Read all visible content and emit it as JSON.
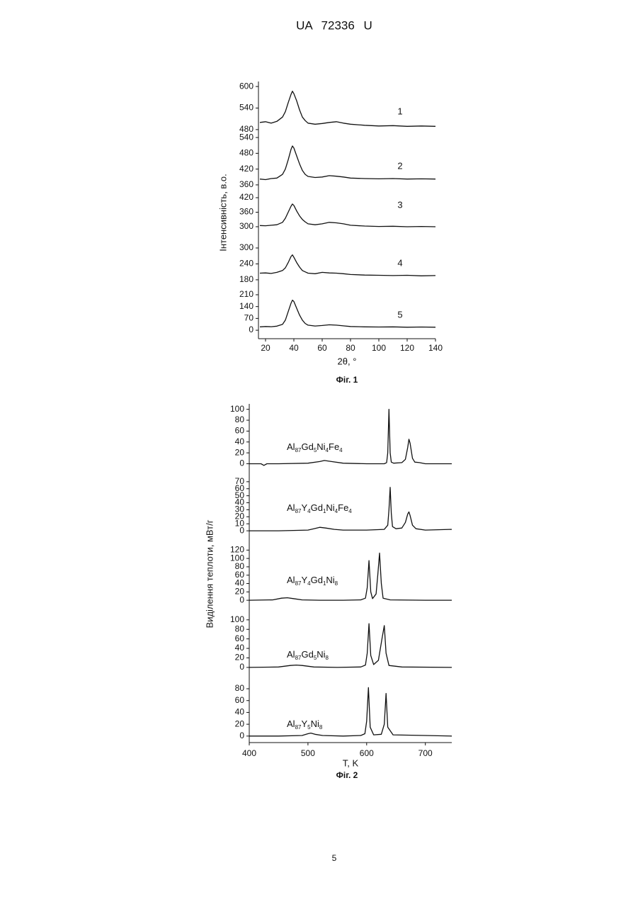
{
  "header": {
    "title": "UA 72336 U"
  },
  "chart_data": [
    {
      "type": "line",
      "caption": "Фіг. 1",
      "x_label": "2θ, °",
      "y_label": "Інтенсивність, в.о.",
      "xlim": [
        15,
        140
      ],
      "xticks": [
        20,
        40,
        60,
        80,
        100,
        120,
        140
      ],
      "x": [
        16,
        20,
        24,
        28,
        32,
        34,
        36,
        38,
        39,
        40,
        42,
        44,
        46,
        48,
        50,
        55,
        60,
        65,
        70,
        75,
        80,
        90,
        100,
        110,
        120,
        130,
        140
      ],
      "series": [
        {
          "name": "1",
          "color": "#111111",
          "ylim": [
            466,
            614
          ],
          "yticks": [
            480,
            540,
            600
          ],
          "values": [
            500,
            502,
            498,
            503,
            515,
            530,
            555,
            578,
            587,
            580,
            560,
            535,
            515,
            505,
            498,
            495,
            497,
            500,
            502,
            498,
            495,
            492,
            490,
            491,
            489,
            490,
            489
          ]
        },
        {
          "name": "2",
          "color": "#111111",
          "ylim": [
            349,
            551
          ],
          "yticks": [
            360,
            420,
            480,
            540
          ],
          "values": [
            382,
            380,
            384,
            386,
            400,
            420,
            455,
            495,
            508,
            500,
            470,
            440,
            415,
            400,
            392,
            388,
            390,
            395,
            393,
            390,
            386,
            384,
            383,
            384,
            382,
            383,
            382
          ]
        },
        {
          "name": "3",
          "color": "#111111",
          "ylim": [
            256,
            461
          ],
          "yticks": [
            300,
            360,
            420
          ],
          "values": [
            305,
            304,
            306,
            308,
            318,
            335,
            360,
            385,
            394,
            388,
            365,
            345,
            330,
            320,
            312,
            308,
            312,
            318,
            316,
            312,
            306,
            303,
            301,
            302,
            300,
            301,
            300
          ]
        },
        {
          "name": "4",
          "color": "#111111",
          "ylim": [
            153,
            340
          ],
          "yticks": [
            180,
            240,
            300
          ],
          "values": [
            205,
            206,
            204,
            208,
            215,
            225,
            245,
            268,
            274,
            265,
            245,
            228,
            215,
            210,
            205,
            203,
            208,
            206,
            205,
            203,
            200,
            198,
            197,
            196,
            197,
            195,
            196
          ]
        },
        {
          "name": "5",
          "color": "#111111",
          "ylim": [
            -50,
            256
          ],
          "yticks": [
            0,
            70,
            140,
            210
          ],
          "values": [
            20,
            22,
            21,
            24,
            35,
            60,
            110,
            160,
            178,
            170,
            130,
            90,
            60,
            40,
            30,
            25,
            28,
            32,
            30,
            26,
            22,
            20,
            19,
            20,
            18,
            19,
            18
          ]
        }
      ]
    },
    {
      "type": "line",
      "caption": "Фіг. 2",
      "x_label": "T, K",
      "y_label": "Виділення теплоти, мВт/г",
      "xlim": [
        400,
        745
      ],
      "xticks": [
        400,
        500,
        600,
        700
      ],
      "series": [
        {
          "name": [
            "Al",
            "87",
            "Gd",
            "5",
            "Ni",
            "4",
            "Fe",
            "4"
          ],
          "color": "#111111",
          "ylim": [
            -15,
            110
          ],
          "yticks": [
            0,
            20,
            40,
            60,
            80,
            100
          ],
          "x": [
            400,
            420,
            425,
            430,
            450,
            500,
            520,
            528,
            540,
            560,
            600,
            630,
            634,
            636,
            638,
            640,
            642,
            646,
            660,
            666,
            670,
            672,
            674,
            678,
            682,
            690,
            700,
            720,
            745
          ],
          "values": [
            0,
            0,
            -3,
            0,
            0,
            1,
            4,
            6,
            4,
            1,
            0,
            0,
            2,
            20,
            100,
            20,
            3,
            1,
            2,
            8,
            30,
            45,
            38,
            10,
            3,
            2,
            0,
            0,
            0
          ]
        },
        {
          "name": [
            "Al",
            "87",
            "Y",
            "4",
            "Gd",
            "1",
            "Ni",
            "4",
            "Fe",
            "4"
          ],
          "color": "#111111",
          "ylim": [
            -12,
            84
          ],
          "yticks": [
            0,
            10,
            20,
            30,
            40,
            50,
            60,
            70
          ],
          "x": [
            400,
            450,
            500,
            510,
            520,
            530,
            545,
            560,
            600,
            630,
            636,
            638,
            640,
            642,
            644,
            650,
            660,
            666,
            670,
            672,
            674,
            678,
            684,
            700,
            745
          ],
          "values": [
            0,
            0,
            1,
            3,
            5,
            4,
            2,
            1,
            1,
            2,
            8,
            30,
            62,
            25,
            6,
            3,
            4,
            12,
            24,
            27,
            22,
            8,
            3,
            1,
            2
          ]
        },
        {
          "name": [
            "Al",
            "87",
            "Y",
            "4",
            "Gd",
            "1",
            "Ni",
            "8"
          ],
          "color": "#111111",
          "ylim": [
            -15,
            146
          ],
          "yticks": [
            0,
            20,
            40,
            60,
            80,
            100,
            120
          ],
          "x": [
            400,
            440,
            455,
            465,
            475,
            490,
            520,
            560,
            590,
            598,
            601,
            604,
            607,
            610,
            616,
            619,
            622,
            625,
            628,
            640,
            700,
            745
          ],
          "values": [
            0,
            1,
            5,
            6,
            4,
            1,
            0,
            0,
            1,
            5,
            30,
            95,
            20,
            4,
            15,
            60,
            113,
            40,
            5,
            1,
            0,
            0
          ]
        },
        {
          "name": [
            "Al",
            "87",
            "Gd",
            "5",
            "Ni",
            "8"
          ],
          "color": "#111111",
          "ylim": [
            -15,
            128
          ],
          "yticks": [
            0,
            20,
            40,
            60,
            80,
            100
          ],
          "x": [
            400,
            450,
            470,
            480,
            490,
            510,
            550,
            590,
            598,
            601,
            604,
            607,
            612,
            620,
            626,
            630,
            633,
            638,
            660,
            745
          ],
          "values": [
            0,
            1,
            4,
            5,
            4,
            1,
            0,
            1,
            5,
            30,
            92,
            25,
            6,
            15,
            60,
            88,
            30,
            4,
            1,
            0
          ]
        },
        {
          "name": [
            "Al",
            "87",
            "Y",
            "5",
            "Ni",
            "8"
          ],
          "color": "#111111",
          "ylim": [
            -11,
            104
          ],
          "yticks": [
            0,
            20,
            40,
            60,
            80
          ],
          "x": [
            400,
            450,
            490,
            500,
            505,
            512,
            525,
            560,
            590,
            597,
            600,
            603,
            606,
            612,
            625,
            630,
            633,
            636,
            645,
            700,
            745
          ],
          "values": [
            0,
            0,
            1,
            4,
            5,
            3,
            1,
            0,
            1,
            4,
            25,
            82,
            15,
            2,
            3,
            20,
            72,
            15,
            2,
            1,
            0
          ]
        }
      ]
    }
  ],
  "page_number": "5"
}
